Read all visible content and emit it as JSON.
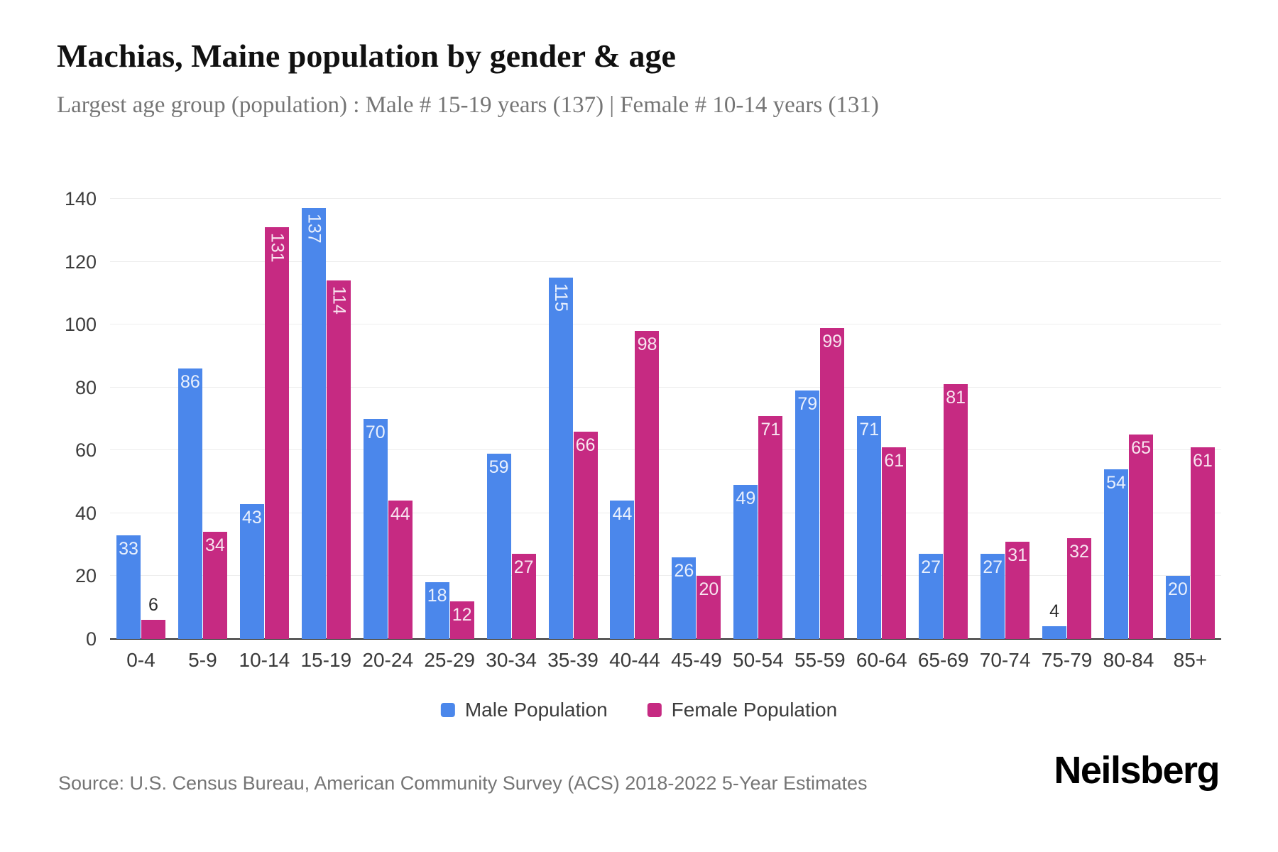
{
  "header": {
    "title": "Machias, Maine population by gender & age",
    "subtitle": "Largest age group (population) : Male # 15-19 years (137) | Female # 10-14 years (131)"
  },
  "chart_data": {
    "type": "bar",
    "categories": [
      "0-4",
      "5-9",
      "10-14",
      "15-19",
      "20-24",
      "25-29",
      "30-34",
      "35-39",
      "40-44",
      "45-49",
      "50-54",
      "55-59",
      "60-64",
      "65-69",
      "70-74",
      "75-79",
      "80-84",
      "85+"
    ],
    "series": [
      {
        "name": "Male Population",
        "color": "#4b87eb",
        "values": [
          33,
          86,
          43,
          137,
          70,
          18,
          59,
          115,
          44,
          26,
          49,
          79,
          71,
          27,
          27,
          4,
          54,
          20
        ]
      },
      {
        "name": "Female Population",
        "color": "#c62a82",
        "values": [
          6,
          34,
          131,
          114,
          44,
          12,
          27,
          66,
          98,
          20,
          71,
          99,
          61,
          81,
          31,
          32,
          65,
          61
        ]
      }
    ],
    "title": "Machias, Maine population by gender & age",
    "xlabel": "",
    "ylabel": "",
    "ylim": [
      0,
      140
    ],
    "yticks": [
      0,
      20,
      40,
      60,
      80,
      100,
      120,
      140
    ],
    "grid": "horizontal",
    "legend_position": "bottom"
  },
  "footer": {
    "source": "Source: U.S. Census Bureau, American Community Survey (ACS) 2018-2022 5-Year Estimates",
    "brand": "Neilsberg"
  }
}
